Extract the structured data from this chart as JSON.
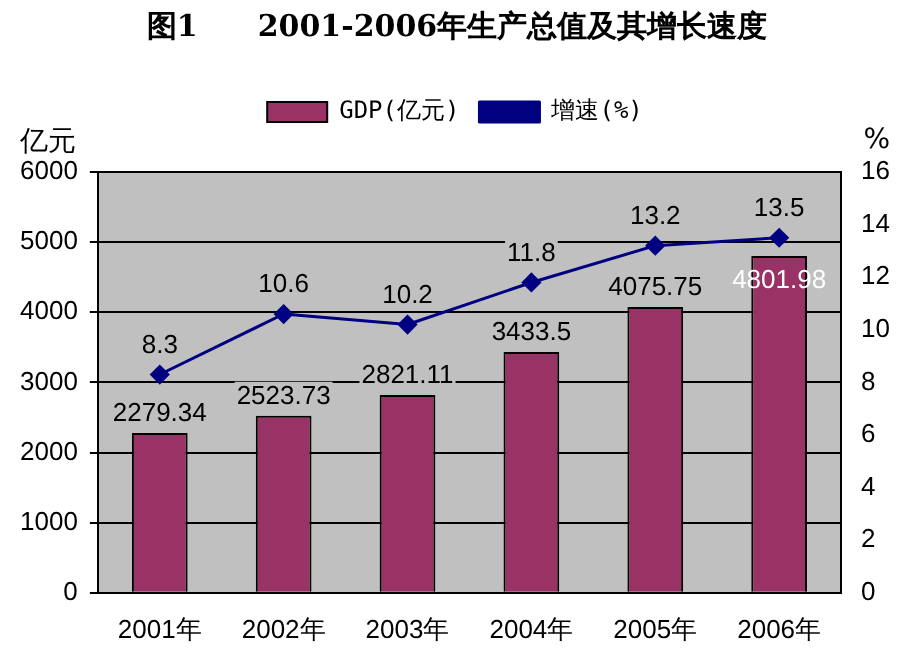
{
  "chart_data": {
    "type": "bar",
    "title": "图1　　2001-2006年生产总值及其增长速度",
    "ylabel": "亿元",
    "y2label": "%",
    "categories": [
      "2001年",
      "2002年",
      "2003年",
      "2004年",
      "2005年",
      "2006年"
    ],
    "series": [
      {
        "name": "GDP(亿元)",
        "color": "#993366",
        "values": [
          2279.34,
          2523.73,
          2821.11,
          3433.5,
          4075.75,
          4801.98
        ]
      },
      {
        "name": "增速(%)",
        "type": "line",
        "axis": "y2",
        "color": "#000080",
        "values": [
          8.3,
          10.6,
          10.2,
          11.8,
          13.2,
          13.5
        ]
      }
    ],
    "ylim": [
      0,
      6000
    ],
    "yticks": [
      0,
      1000,
      2000,
      3000,
      4000,
      5000,
      6000
    ],
    "y2lim": [
      0,
      16
    ],
    "y2ticks": [
      0,
      2,
      4,
      6,
      8,
      10,
      12,
      14,
      16
    ],
    "grid": "y",
    "legend": "top",
    "marker": "diamond",
    "data_labels": true
  }
}
